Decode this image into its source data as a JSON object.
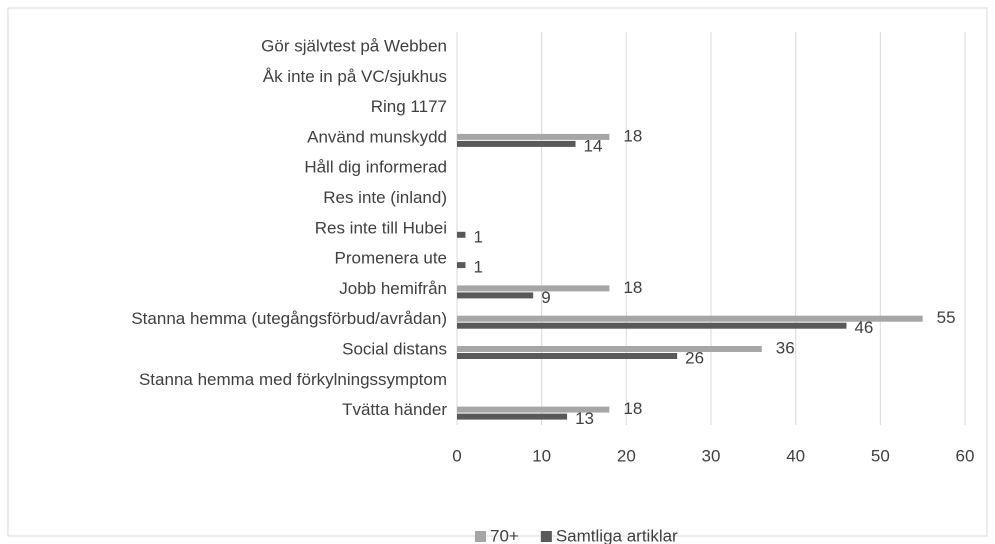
{
  "chart_data": {
    "type": "bar",
    "orientation": "horizontal",
    "categories": [
      "Gör självtest på Webben",
      "Åk inte in på VC/sjukhus",
      "Ring 1177",
      "Använd munskydd",
      "Håll dig informerad",
      "Res inte (inland)",
      "Res inte till Hubei",
      "Promenera ute",
      "Jobb hemifrån",
      "Stanna hemma (utegångsförbud/avrådan)",
      "Social distans",
      "Stanna hemma med förkylningssymptom",
      "Tvätta händer"
    ],
    "series": [
      {
        "name": "70+",
        "color": "#a6a6a6",
        "values": [
          null,
          null,
          null,
          18,
          null,
          null,
          null,
          null,
          18,
          55,
          36,
          null,
          18
        ]
      },
      {
        "name": "Samtliga artiklar",
        "color": "#595959",
        "values": [
          null,
          null,
          null,
          14,
          null,
          null,
          1,
          1,
          9,
          46,
          26,
          null,
          13
        ]
      }
    ],
    "xlim": [
      0,
      60
    ],
    "xticks": [
      0,
      10,
      20,
      30,
      40,
      50,
      60
    ],
    "grid": true,
    "legend": "bottom"
  }
}
